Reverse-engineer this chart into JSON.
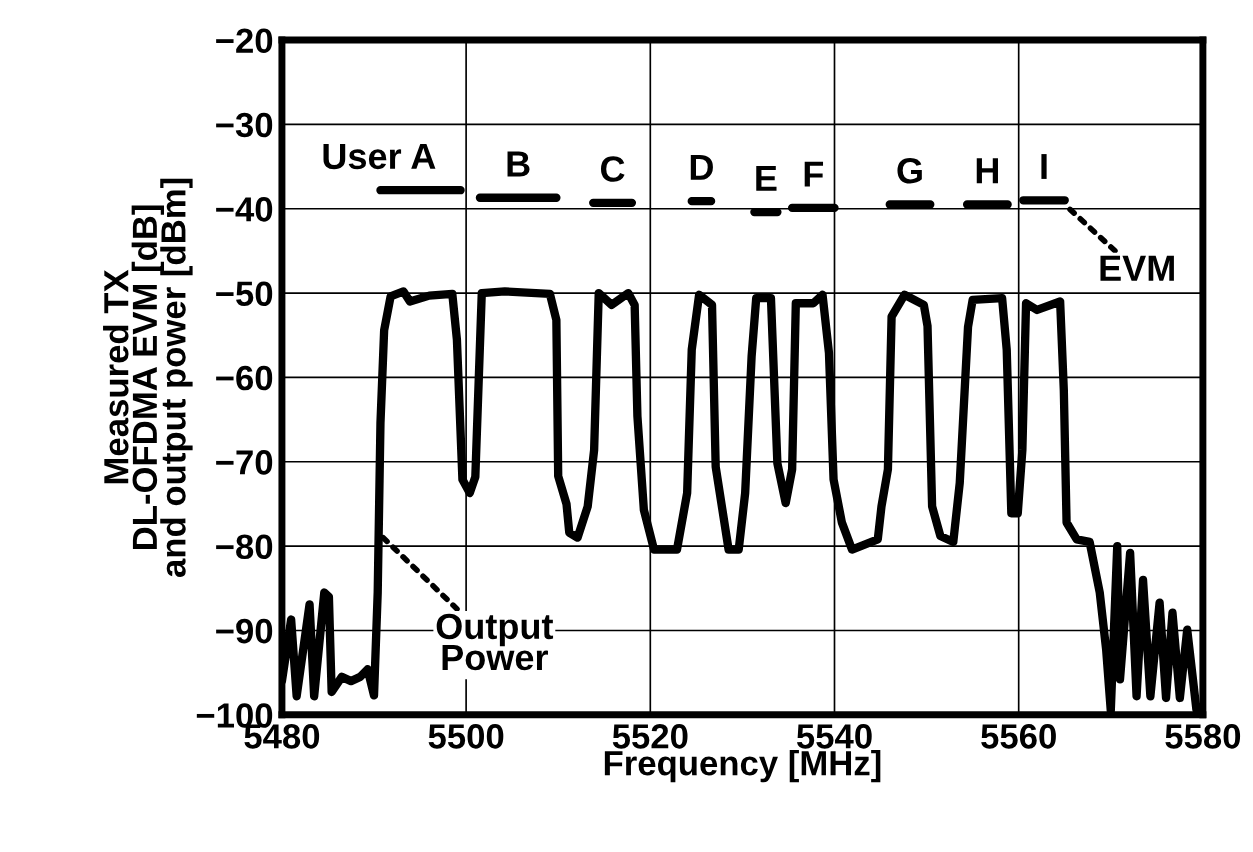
{
  "chart_data": {
    "type": "line",
    "xlabel": "Frequency [MHz]",
    "ylabel": "Measured TX\nDL-OFDMA EVM [dB]\nand output power [dBm]",
    "xlim": [
      5480,
      5580
    ],
    "xticks": [
      5480,
      5500,
      5520,
      5540,
      5560,
      5580
    ],
    "ylim": [
      -100,
      -20
    ],
    "yticks": [
      -100,
      -90,
      -80,
      -70,
      -60,
      -50,
      -40,
      -30,
      -20
    ],
    "grid": true,
    "legend": false,
    "marker": "none",
    "line_style": "solid",
    "series": [
      {
        "color": "#000000",
        "x": [
          5480,
          5481.0,
          5481.6,
          5483.0,
          5483.5,
          5484.6,
          5485.1,
          5485.4,
          5486.5,
          5487.5,
          5488.5,
          5489.3,
          5490.0,
          5490.4,
          5490.7,
          5491.1,
          5491.8,
          5493.2,
          5493.9,
          5496.0,
          5498.5,
          5499.0,
          5499.6,
          5500.4,
          5501.0,
          5501.7,
          5504.2,
          5509.1,
          5509.8,
          5510.0,
          5510.9,
          5511.2,
          5512.1,
          5513.2,
          5513.9,
          5514.4,
          5515.8,
          5517.6,
          5518.3,
          5518.6,
          5519.3,
          5520.4,
          5522.9,
          5524.0,
          5524.5,
          5525.3,
          5526.7,
          5527.1,
          5528.5,
          5529.6,
          5530.3,
          5531.0,
          5531.5,
          5533.1,
          5533.8,
          5534.7,
          5535.4,
          5535.8,
          5537.7,
          5538.7,
          5539.4,
          5539.9,
          5540.8,
          5541.9,
          5544.7,
          5545.1,
          5545.8,
          5546.2,
          5547.6,
          5549.7,
          5550.1,
          5550.6,
          5551.5,
          5552.9,
          5553.6,
          5554.5,
          5555.0,
          5558.2,
          5558.7,
          5559.2,
          5559.9,
          5560.4,
          5560.8,
          5562.0,
          5564.5,
          5564.9,
          5565.2,
          5566.3,
          5567.7,
          5568.8,
          5569.5,
          5570.0,
          5570.7,
          5571.0,
          5572.1,
          5572.8,
          5573.5,
          5574.3,
          5575.3,
          5576.0,
          5576.7,
          5577.5,
          5578.3,
          5579.3,
          5580
        ],
        "values": [
          -96,
          -88.7,
          -97.8,
          -86.9,
          -97.8,
          -85.5,
          -86,
          -97.3,
          -95.5,
          -96,
          -95.5,
          -94.6,
          -97.7,
          -85.5,
          -65.4,
          -54.4,
          -50.4,
          -49.8,
          -51,
          -50.3,
          -50.1,
          -55.5,
          -72.1,
          -73.7,
          -71.8,
          -50,
          -49.8,
          -50.1,
          -53.2,
          -71.7,
          -75,
          -78.4,
          -79,
          -75.3,
          -68.6,
          -50,
          -51.4,
          -50,
          -51.4,
          -64.6,
          -75.7,
          -80.4,
          -80.4,
          -73.7,
          -56.7,
          -50.2,
          -51.4,
          -70.6,
          -80.4,
          -80.4,
          -73.7,
          -57.5,
          -50.6,
          -50.6,
          -70.2,
          -74.9,
          -70.9,
          -51.2,
          -51.2,
          -50.2,
          -57.1,
          -72.1,
          -77.2,
          -80.4,
          -79.2,
          -75.3,
          -70.9,
          -52.8,
          -50.2,
          -51.4,
          -53.9,
          -75.3,
          -78.8,
          -79.5,
          -72.5,
          -54,
          -50.8,
          -50.6,
          -56.7,
          -76.1,
          -76.1,
          -68.6,
          -51.2,
          -52,
          -51,
          -61.5,
          -77.2,
          -79.2,
          -79.5,
          -85.5,
          -92.3,
          -99.5,
          -80,
          -95.8,
          -80.8,
          -97.8,
          -84,
          -97.8,
          -86.7,
          -98,
          -87.9,
          -98,
          -89.9,
          -99.4,
          -99
        ]
      },
      {
        "color": "#000000",
        "x": [
          5490.7,
          5499.4,
          5500.5,
          5501.5,
          5509.8,
          5512.0,
          5513.8,
          5518.0,
          5521.0,
          5524.5,
          5526.6,
          5529.0,
          5531.3,
          5533.8,
          5534.6,
          5535.4,
          5540.0,
          5543.0,
          5546.0,
          5550.4,
          5552.4,
          5554.4,
          5558.8,
          5559.6,
          5560.5,
          5565.0
        ],
        "values": [
          -37.8,
          -37.8,
          null,
          -38.7,
          -38.7,
          null,
          -39.3,
          -39.3,
          null,
          -39.1,
          -39.1,
          null,
          -40.4,
          -40.4,
          null,
          -39.9,
          -39.9,
          null,
          -39.5,
          -39.5,
          null,
          -39.5,
          -39.5,
          null,
          -39.0,
          -39.0
        ]
      }
    ],
    "annotations": [
      {
        "text": "User A",
        "x": 5495.05,
        "y": -37.8
      },
      {
        "text": "B",
        "x": 5505.65,
        "y": -38.7
      },
      {
        "text": "C",
        "x": 5515.9,
        "y": -39.3
      },
      {
        "text": "D",
        "x": 5525.55,
        "y": -39.1
      },
      {
        "text": "E",
        "x": 5532.55,
        "y": -40.4
      },
      {
        "text": "F",
        "x": 5537.7,
        "y": -39.9
      },
      {
        "text": "G",
        "x": 5548.2,
        "y": -39.5
      },
      {
        "text": "H",
        "x": 5556.6,
        "y": -39.5
      },
      {
        "text": "I",
        "x": 5562.75,
        "y": -39.0
      },
      {
        "text": "EVM",
        "x": 5565.0,
        "y": -39.5
      },
      {
        "text": "Output\nPower",
        "x": 5491.0,
        "y": -79
      }
    ]
  }
}
